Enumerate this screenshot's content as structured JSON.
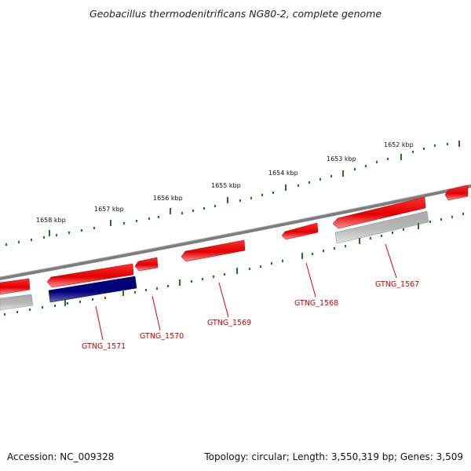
{
  "title": "Geobacillus thermodenitrificans NG80-2, complete genome",
  "footer": {
    "accession": "Accession: NC_009328",
    "summary": "Topology: circular; Length: 3,550,319 bp; Genes: 3,509"
  },
  "colors": {
    "forward_gene": "#ff0000",
    "reverse_gene_highlight": "#000080",
    "reverse_gene": "#b8b8b8",
    "backbone": "#808080",
    "tick": "#1a7a1a",
    "label": "#cc0000"
  },
  "scale_labels": [
    "1652 kbp",
    "1653 kbp",
    "1654 kbp",
    "1655 kbp",
    "1656 kbp",
    "1657 kbp",
    "1658 kbp"
  ],
  "gene_labels": [
    "GTNG_1567",
    "GTNG_1568",
    "GTNG_1569",
    "GTNG_1570",
    "GTNG_1571"
  ]
}
